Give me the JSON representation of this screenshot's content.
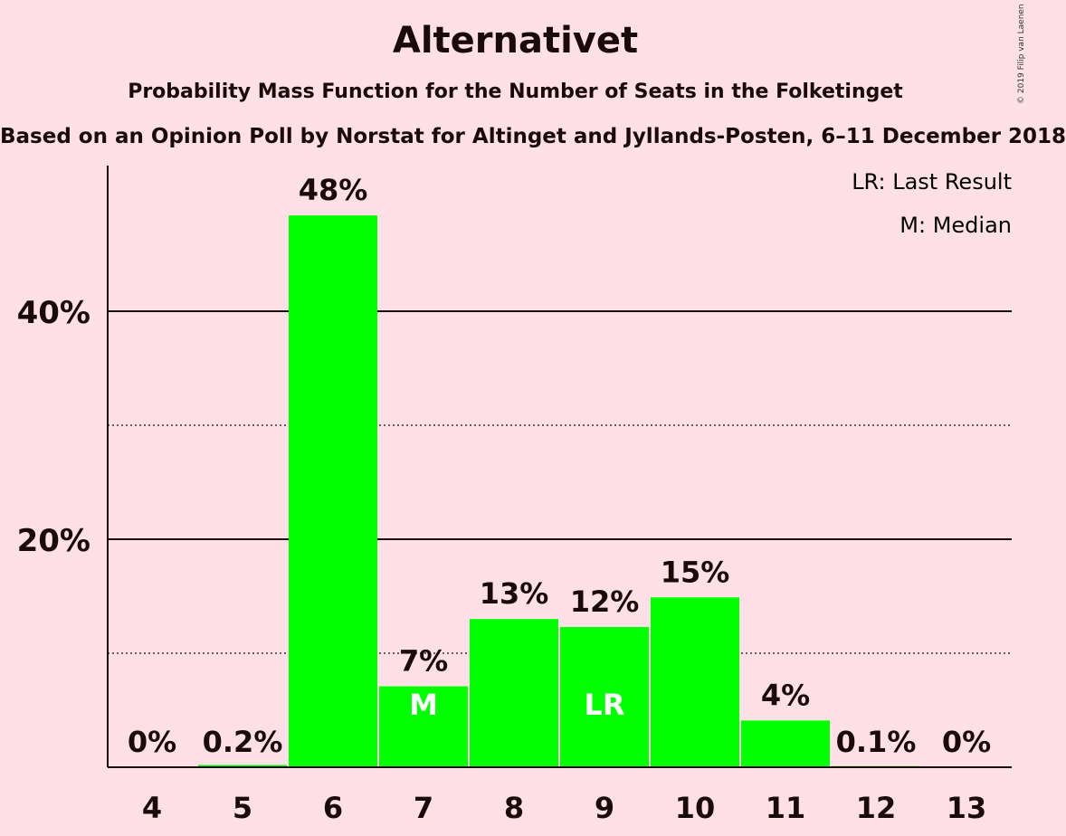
{
  "title": "Alternativet",
  "subtitle": "Probability Mass Function for the Number of Seats in the Folketinget",
  "subtitle2": "Based on an Opinion Poll by Norstat for Altinget and Jyllands-Posten, 6–11 December 2018",
  "copyright": "© 2019 Filip van Laenen",
  "legend": {
    "last_result": "LR: Last Result",
    "median": "M: Median"
  },
  "colors": {
    "bar": "#00ff00",
    "background": "#ffe0e6",
    "axis": "#1a0a0a"
  },
  "chart_data": {
    "type": "bar",
    "categories": [
      "4",
      "5",
      "6",
      "7",
      "8",
      "9",
      "10",
      "11",
      "12",
      "13"
    ],
    "values": [
      0,
      0.2,
      48.4,
      7.1,
      13.0,
      12.3,
      14.9,
      4.1,
      0.1,
      0
    ],
    "labels": [
      "0%",
      "0.2%",
      "48%",
      "7%",
      "13%",
      "12%",
      "15%",
      "4%",
      "0.1%",
      "0%"
    ],
    "markers": {
      "7": "M",
      "9": "LR"
    },
    "ylim": [
      0,
      52
    ],
    "yticks": [
      {
        "value": 20,
        "label": "20%"
      },
      {
        "value": 40,
        "label": "40%"
      }
    ],
    "minor_gridlines": [
      10,
      30
    ],
    "legend_placement": "top-right"
  }
}
